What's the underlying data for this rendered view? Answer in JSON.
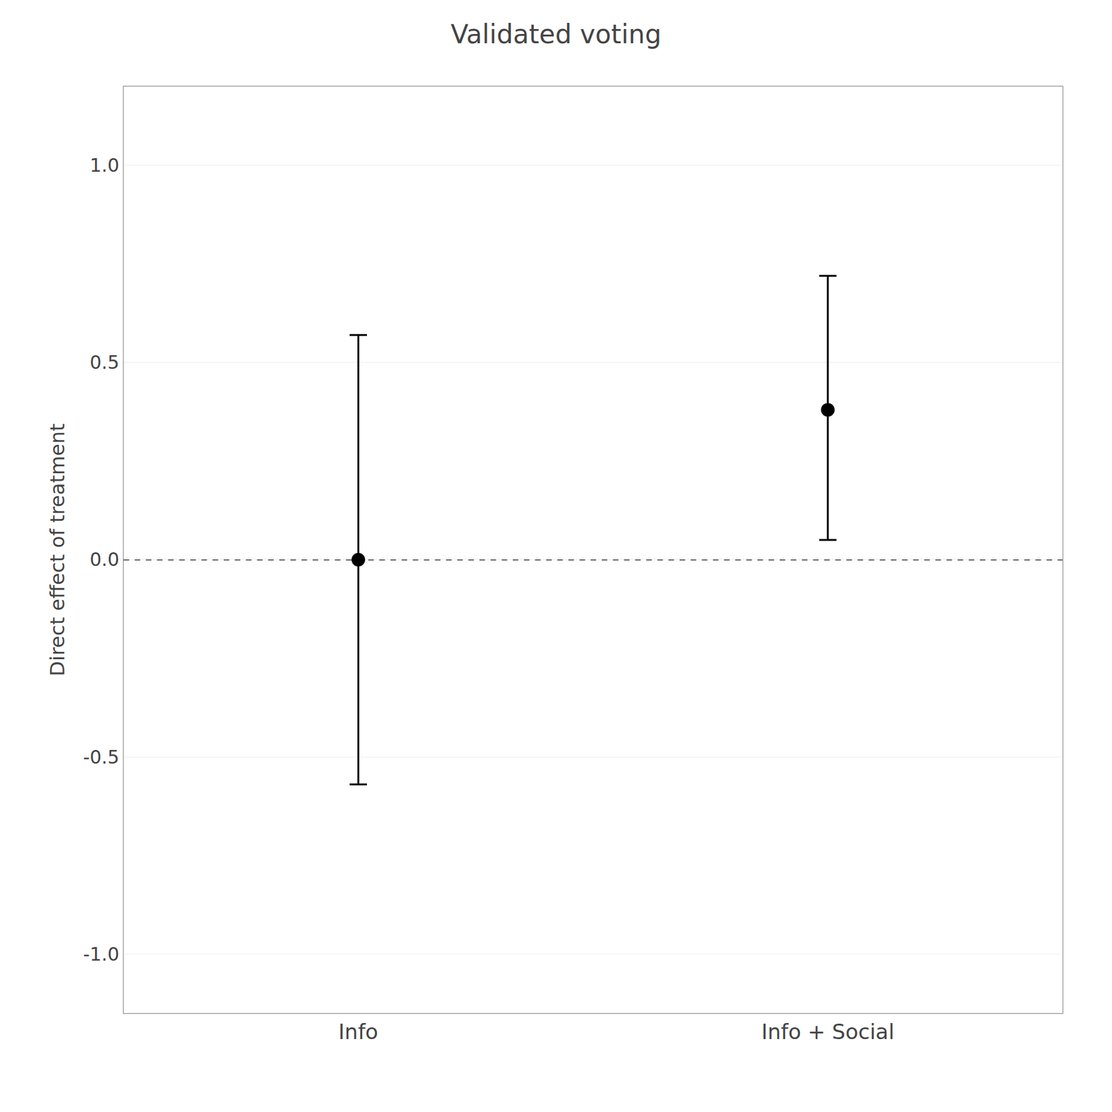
{
  "chart_data": {
    "type": "errorbar",
    "title": "Validated voting",
    "ylabel": "Direct effect of treatment",
    "categories": [
      "Info",
      "Info + Social"
    ],
    "values": [
      0.0,
      0.38
    ],
    "ci_lower": [
      -0.57,
      0.05
    ],
    "ci_upper": [
      0.57,
      0.72
    ],
    "hline": 0.0,
    "color": "#000000",
    "marker": "circle",
    "ylim": [
      -1.15,
      1.2
    ],
    "yticks": [
      {
        "value": -1.0,
        "label": "-1.0"
      },
      -0.5,
      {
        "value": 0.0,
        "label": "0.0"
      },
      0.5,
      {
        "value": 1.0,
        "label": "1.0"
      }
    ],
    "grid": true
  }
}
